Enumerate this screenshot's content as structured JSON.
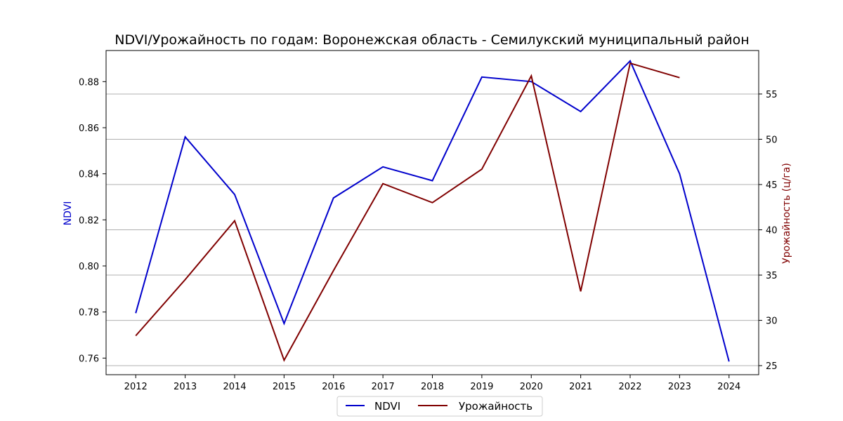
{
  "chart_data": {
    "type": "line",
    "title": "NDVI/Урожайность по годам: Воронежская область - Семилукский муниципальный район",
    "x": [
      2012,
      2013,
      2014,
      2015,
      2016,
      2017,
      2018,
      2019,
      2020,
      2021,
      2022,
      2023,
      2024
    ],
    "x_tick_labels": [
      "2012",
      "2013",
      "2014",
      "2015",
      "2016",
      "2017",
      "2018",
      "2019",
      "2020",
      "2021",
      "2022",
      "2023",
      "2024"
    ],
    "left_axis": {
      "label": "NDVI",
      "color": "#0000cc",
      "ylim": [
        0.7528,
        0.8935
      ],
      "ticks": [
        0.76,
        0.78,
        0.8,
        0.82,
        0.84,
        0.86,
        0.88
      ],
      "tick_labels": [
        "0.76",
        "0.78",
        "0.80",
        "0.82",
        "0.84",
        "0.86",
        "0.88"
      ]
    },
    "right_axis": {
      "label": "Урожайность (ц/га)",
      "color": "#800000",
      "ylim": [
        24.0,
        59.8
      ],
      "ticks": [
        25,
        30,
        35,
        40,
        45,
        50,
        55
      ],
      "tick_labels": [
        "25",
        "30",
        "35",
        "40",
        "45",
        "50",
        "55"
      ]
    },
    "series": [
      {
        "name": "NDVI",
        "axis": "left",
        "color": "#0000cc",
        "x": [
          2012,
          2013,
          2014,
          2015,
          2016,
          2017,
          2018,
          2019,
          2020,
          2021,
          2022,
          2023,
          2024
        ],
        "values": [
          0.7795,
          0.856,
          0.831,
          0.775,
          0.8295,
          0.843,
          0.837,
          0.882,
          0.88,
          0.867,
          0.889,
          0.84,
          0.7585
        ]
      },
      {
        "name": "Урожайность",
        "axis": "right",
        "color": "#800000",
        "x": [
          2012,
          2013,
          2014,
          2015,
          2016,
          2017,
          2018,
          2019,
          2020,
          2021,
          2022,
          2023
        ],
        "values": [
          28.3,
          34.5,
          41.0,
          25.6,
          35.5,
          45.1,
          43.0,
          46.7,
          57.0,
          33.2,
          58.4,
          56.8
        ]
      }
    ],
    "grid": "horizontal (right axis ticks)",
    "legend": "bottom-center"
  }
}
